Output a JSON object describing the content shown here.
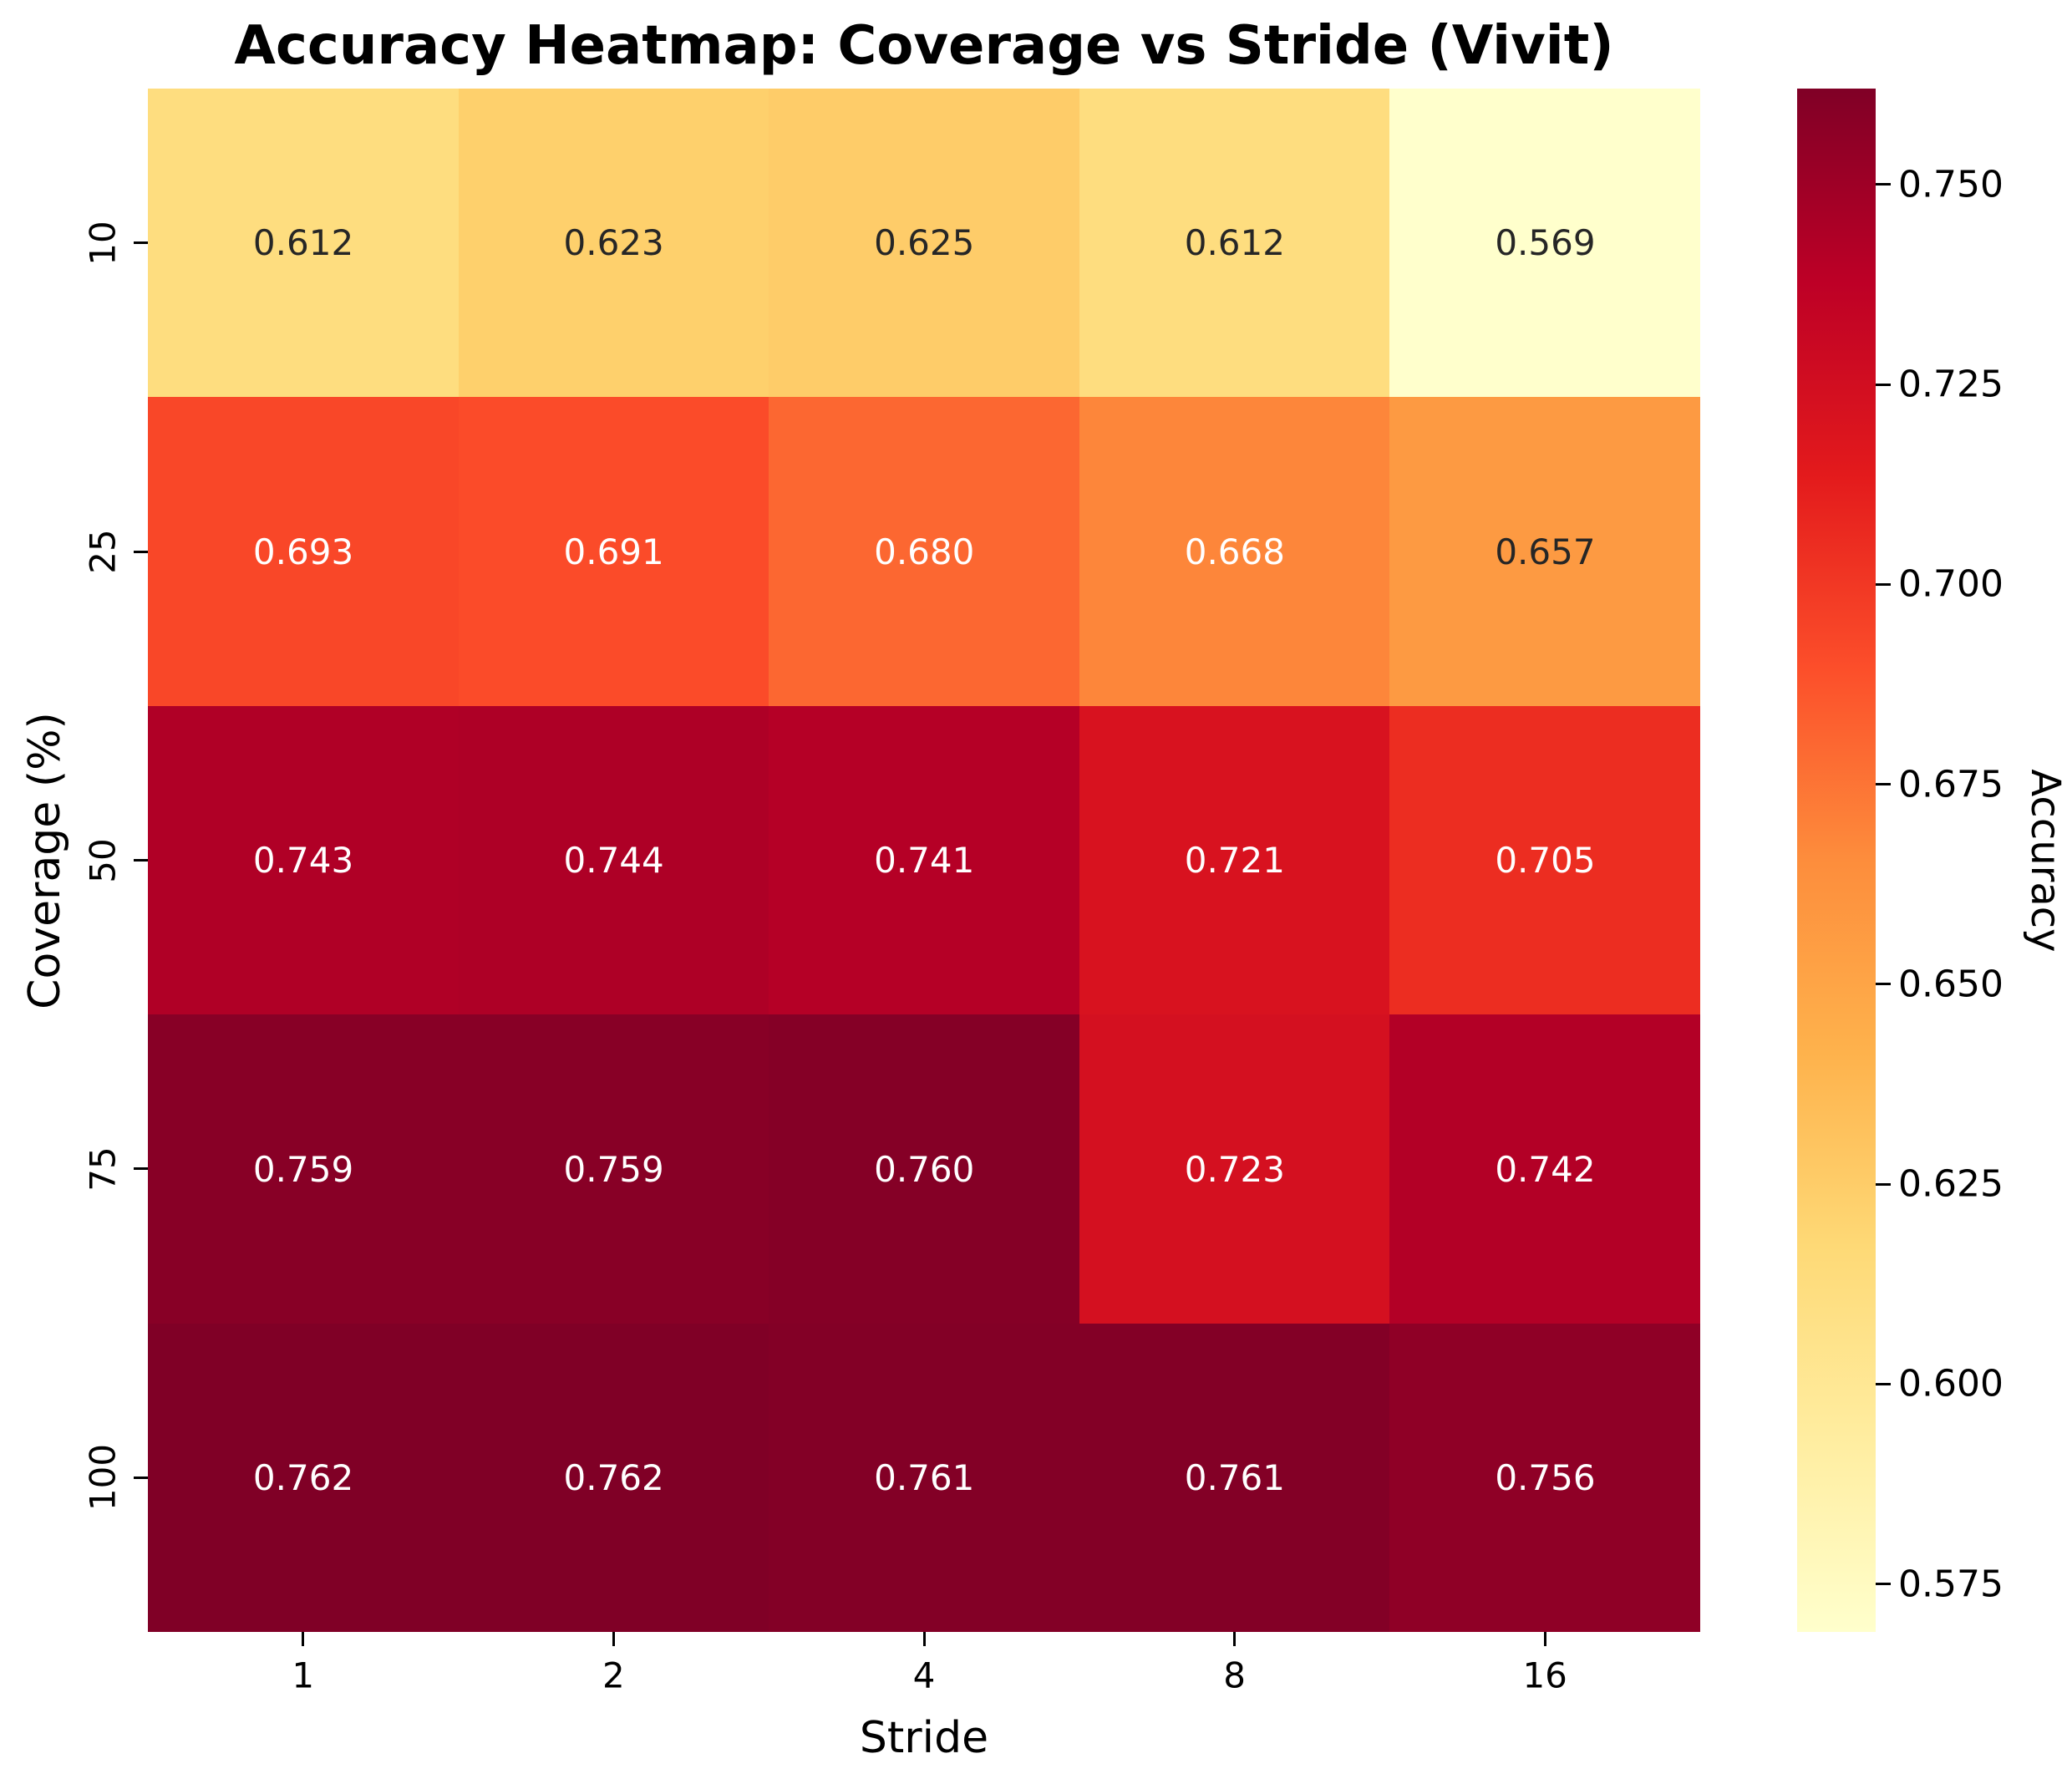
{
  "chart_data": {
    "type": "heatmap",
    "title": "Accuracy Heatmap: Coverage vs Stride (Vivit)",
    "xlabel": "Stride",
    "ylabel": "Coverage (%)",
    "x_categories": [
      "1",
      "2",
      "4",
      "8",
      "16"
    ],
    "y_categories": [
      "10",
      "25",
      "50",
      "75",
      "100"
    ],
    "values": [
      [
        0.612,
        0.623,
        0.625,
        0.612,
        0.569
      ],
      [
        0.693,
        0.691,
        0.68,
        0.668,
        0.657
      ],
      [
        0.743,
        0.744,
        0.741,
        0.721,
        0.705
      ],
      [
        0.759,
        0.759,
        0.76,
        0.723,
        0.742
      ],
      [
        0.762,
        0.762,
        0.761,
        0.761,
        0.756
      ]
    ],
    "value_decimals": 3,
    "vmin": 0.569,
    "vmax": 0.762,
    "colormap": {
      "name": "YlOrRd",
      "anchors": [
        "#ffffcc",
        "#ffeda0",
        "#fed976",
        "#feb24c",
        "#fd8d3c",
        "#fc4e2a",
        "#e31a1c",
        "#bd0026",
        "#800026"
      ]
    },
    "annotation_colors": {
      "on_light": "#262626",
      "on_dark": "#ffffff"
    },
    "colorbar": {
      "label": "Accuracy",
      "ticks": [
        0.75,
        0.725,
        0.7,
        0.675,
        0.65,
        0.625,
        0.6,
        0.575
      ],
      "tick_decimals": 3
    },
    "grid": false,
    "legend": false
  }
}
